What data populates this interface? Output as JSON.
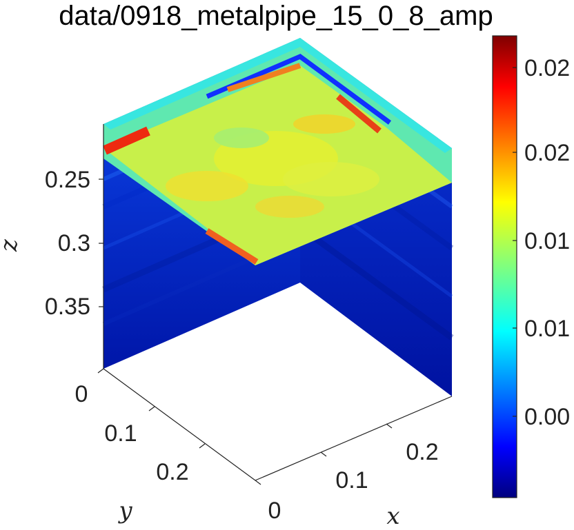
{
  "chart_data": {
    "type": "heatmap",
    "subtype": "3d-volume-slice",
    "title": "data/0918_metalpipe_15_0_8_amp",
    "xlabel": "x",
    "ylabel": "y",
    "zlabel": "z",
    "x_ticks": [
      "0",
      "0.1",
      "0.2"
    ],
    "y_ticks": [
      "0",
      "0.1",
      "0.2"
    ],
    "z_ticks": [
      "0.25",
      "0.3",
      "0.35"
    ],
    "z_direction": "reversed",
    "colorbar": {
      "colormap": "jet",
      "tick_labels": [
        "0.02",
        "0.02",
        "0.01",
        "0.01",
        "0.00"
      ],
      "range": [
        -0.004,
        0.024
      ]
    },
    "slices": [
      {
        "name": "top",
        "description": "mostly yellow-green with red/orange along edges"
      },
      {
        "name": "left-front",
        "description": "mostly dark blue"
      },
      {
        "name": "right-front",
        "description": "mostly dark blue"
      }
    ]
  }
}
